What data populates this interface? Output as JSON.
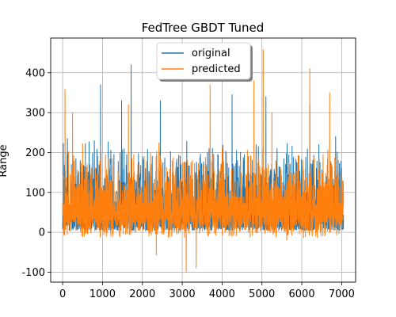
{
  "chart_data": {
    "type": "line",
    "title": "FedTree GBDT Tuned",
    "xlabel": "",
    "ylabel": "Range",
    "xlim": [
      -300,
      7350
    ],
    "ylim": [
      -125,
      487
    ],
    "x_ticks": [
      0,
      1000,
      2000,
      3000,
      4000,
      5000,
      6000,
      7000
    ],
    "y_ticks": [
      -100,
      0,
      100,
      200,
      300,
      400
    ],
    "grid": true,
    "legend_position": "top-center",
    "n_points": 7050,
    "series": [
      {
        "name": "original",
        "color": "#1f77b4",
        "values_summary": {
          "typical_min": 0,
          "typical_max": 250,
          "peak": 420,
          "mean": 90
        },
        "notable_points": [
          [
            120,
            235
          ],
          [
            950,
            370
          ],
          [
            1480,
            330
          ],
          [
            1720,
            420
          ],
          [
            2450,
            330
          ],
          [
            4250,
            345
          ],
          [
            5100,
            340
          ],
          [
            6200,
            320
          ],
          [
            6850,
            240
          ],
          [
            7000,
            160
          ]
        ]
      },
      {
        "name": "predicted",
        "color": "#ff7f0e",
        "values_summary": {
          "typical_min": -20,
          "typical_max": 230,
          "peak": 458,
          "mean": 90
        },
        "notable_points": [
          [
            60,
            358
          ],
          [
            250,
            300
          ],
          [
            1650,
            320
          ],
          [
            2350,
            -57
          ],
          [
            3100,
            -100
          ],
          [
            3350,
            -90
          ],
          [
            3700,
            370
          ],
          [
            4800,
            380
          ],
          [
            5030,
            458
          ],
          [
            5250,
            300
          ],
          [
            6200,
            410
          ],
          [
            6700,
            350
          ],
          [
            7000,
            160
          ]
        ]
      }
    ]
  }
}
